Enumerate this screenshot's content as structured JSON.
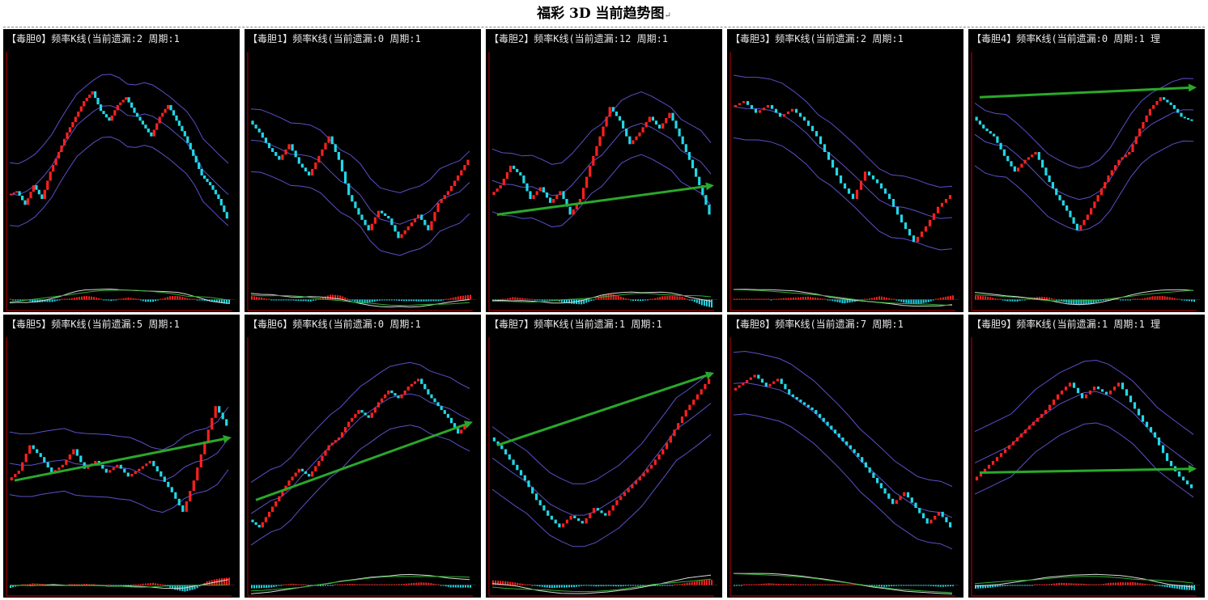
{
  "page": {
    "title": "福彩 3D 当前趋势图",
    "title_mark": "↵"
  },
  "colors": {
    "background": "#000000",
    "up_bar": "#ff2020",
    "down_bar": "#20d8e8",
    "band": "#5a50c8",
    "axis": "#c00000",
    "macd_fast": "#d8d8d8",
    "macd_slow": "#30b030",
    "trend_arrow": "#2aa82a",
    "title_text": "#e8e8e8"
  },
  "chart_data": [
    {
      "type": "candlestick",
      "title": "【毒胆0】频率K线(当前遗漏:2 周期:1",
      "overlays": [
        "boll-upper",
        "boll-mid",
        "boll-lower"
      ],
      "indicator": "macd",
      "values": [
        0.4,
        0.42,
        0.35,
        0.45,
        0.38,
        0.52,
        0.62,
        0.72,
        0.8,
        0.88,
        0.93,
        0.83,
        0.78,
        0.86,
        0.9,
        0.82,
        0.76,
        0.7,
        0.8,
        0.86,
        0.78,
        0.7,
        0.6,
        0.5,
        0.45,
        0.38,
        0.28
      ],
      "trend": null
    },
    {
      "type": "candlestick",
      "title": "【毒胆1】频率K线(当前遗漏:0 周期:1",
      "overlays": [
        "boll-upper",
        "boll-mid",
        "boll-lower"
      ],
      "indicator": "macd",
      "values": [
        0.78,
        0.72,
        0.64,
        0.58,
        0.66,
        0.56,
        0.5,
        0.6,
        0.7,
        0.58,
        0.4,
        0.3,
        0.22,
        0.32,
        0.28,
        0.18,
        0.24,
        0.3,
        0.22,
        0.36,
        0.42,
        0.5,
        0.58
      ],
      "trend": null
    },
    {
      "type": "candlestick",
      "title": "【毒胆2】频率K线(当前遗漏:12 周期:1",
      "overlays": [
        "boll-upper",
        "boll-mid",
        "boll-lower"
      ],
      "indicator": "macd",
      "values": [
        0.4,
        0.45,
        0.55,
        0.5,
        0.38,
        0.44,
        0.36,
        0.42,
        0.3,
        0.38,
        0.55,
        0.7,
        0.85,
        0.78,
        0.66,
        0.72,
        0.8,
        0.74,
        0.82,
        0.7,
        0.58,
        0.45,
        0.3
      ],
      "trend": [
        0.3,
        0.45
      ]
    },
    {
      "type": "candlestick",
      "title": "【毒胆3】频率K线(当前遗漏:2 周期:1",
      "overlays": [
        "boll-upper",
        "boll-mid",
        "boll-lower"
      ],
      "indicator": "macd",
      "values": [
        0.85,
        0.88,
        0.82,
        0.86,
        0.8,
        0.84,
        0.78,
        0.7,
        0.58,
        0.46,
        0.38,
        0.52,
        0.46,
        0.38,
        0.26,
        0.16,
        0.24,
        0.34,
        0.4
      ],
      "trend": null
    },
    {
      "type": "candlestick",
      "title": "【毒胆4】频率K线(当前遗漏:0 周期:1 理",
      "overlays": [
        "boll-upper",
        "boll-mid",
        "boll-lower"
      ],
      "indicator": "macd",
      "values": [
        0.8,
        0.74,
        0.7,
        0.6,
        0.52,
        0.58,
        0.62,
        0.5,
        0.4,
        0.32,
        0.22,
        0.3,
        0.4,
        0.5,
        0.58,
        0.62,
        0.74,
        0.84,
        0.9,
        0.86,
        0.8,
        0.78
      ],
      "trend": [
        0.9,
        0.95
      ]
    },
    {
      "type": "candlestick",
      "title": "【毒胆5】频率K线(当前遗漏:5 周期:1",
      "overlays": [
        "boll-upper",
        "boll-mid",
        "boll-lower"
      ],
      "indicator": "macd",
      "values": [
        0.4,
        0.45,
        0.58,
        0.52,
        0.44,
        0.48,
        0.56,
        0.46,
        0.5,
        0.44,
        0.48,
        0.42,
        0.46,
        0.5,
        0.42,
        0.34,
        0.24,
        0.4,
        0.6,
        0.78,
        0.68
      ],
      "trend": [
        0.4,
        0.62
      ]
    },
    {
      "type": "candlestick",
      "title": "【毒胆6】频率K线(当前遗漏:0 周期:1",
      "overlays": [
        "boll-upper",
        "boll-mid",
        "boll-lower"
      ],
      "indicator": "macd",
      "values": [
        0.2,
        0.16,
        0.24,
        0.32,
        0.4,
        0.46,
        0.42,
        0.5,
        0.58,
        0.62,
        0.7,
        0.76,
        0.72,
        0.8,
        0.86,
        0.82,
        0.88,
        0.92,
        0.84,
        0.78,
        0.72,
        0.64,
        0.7
      ],
      "trend": [
        0.3,
        0.7
      ]
    },
    {
      "type": "candlestick",
      "title": "【毒胆7】频率K线(当前遗漏:1 周期:1",
      "overlays": [
        "boll-upper",
        "boll-mid",
        "boll-lower"
      ],
      "indicator": "macd",
      "values": [
        0.62,
        0.56,
        0.48,
        0.4,
        0.3,
        0.22,
        0.16,
        0.22,
        0.18,
        0.26,
        0.22,
        0.3,
        0.36,
        0.42,
        0.48,
        0.56,
        0.66,
        0.76,
        0.84,
        0.92
      ],
      "trend": [
        0.58,
        0.95
      ]
    },
    {
      "type": "candlestick",
      "title": "【毒胆8】频率K线(当前遗漏:7 周期:1",
      "overlays": [
        "boll-upper",
        "boll-mid",
        "boll-lower"
      ],
      "indicator": "macd",
      "values": [
        0.86,
        0.9,
        0.94,
        0.88,
        0.92,
        0.84,
        0.8,
        0.76,
        0.7,
        0.64,
        0.58,
        0.52,
        0.44,
        0.36,
        0.28,
        0.34,
        0.26,
        0.18,
        0.24,
        0.16
      ],
      "trend": null
    },
    {
      "type": "candlestick",
      "title": "【毒胆9】频率K线(当前遗漏:1 周期:1 理",
      "overlays": [
        "boll-upper",
        "boll-mid",
        "boll-lower"
      ],
      "indicator": "macd",
      "values": [
        0.4,
        0.46,
        0.52,
        0.58,
        0.64,
        0.7,
        0.76,
        0.84,
        0.9,
        0.82,
        0.88,
        0.84,
        0.9,
        0.8,
        0.7,
        0.62,
        0.5,
        0.42,
        0.36
      ],
      "trend": [
        0.44,
        0.46
      ]
    }
  ]
}
